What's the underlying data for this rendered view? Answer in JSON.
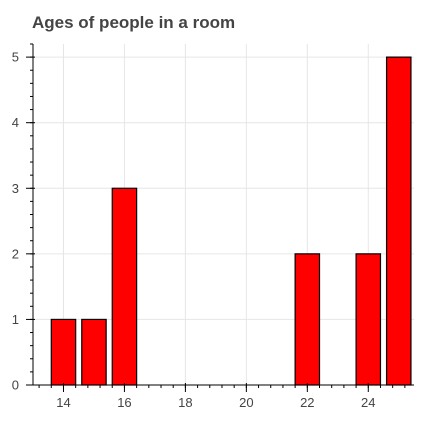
{
  "chart_data": {
    "type": "bar",
    "title": "Ages of people in a room",
    "xlabel": "",
    "ylabel": "",
    "x": [
      14,
      15,
      16,
      22,
      24,
      25
    ],
    "values": [
      1,
      1,
      3,
      2,
      2,
      5
    ],
    "xlim": [
      13,
      25.5
    ],
    "ylim": [
      0,
      5.2
    ],
    "x_ticks": [
      14,
      16,
      18,
      20,
      22,
      24
    ],
    "y_ticks": [
      0,
      1,
      2,
      3,
      4,
      5
    ],
    "grid": true,
    "bar_color": "#ff0000",
    "bar_outline": "#000000"
  }
}
